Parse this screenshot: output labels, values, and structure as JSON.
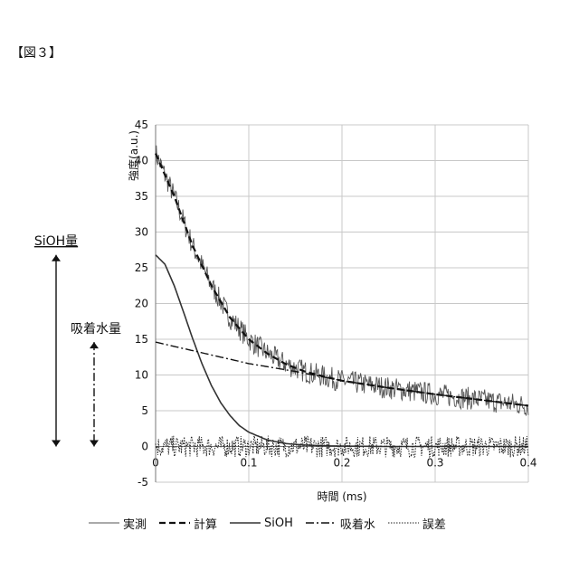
{
  "figure_label": "【図３】",
  "chart_data": {
    "type": "line",
    "title": "",
    "xlabel": "時間 (ms)",
    "ylabel": "強度(a.u.)",
    "xlim": [
      0,
      0.4
    ],
    "ylim": [
      -5,
      45
    ],
    "xticks": [
      "0",
      "0.1",
      "0.2",
      "0.3",
      "0.4"
    ],
    "yticks": [
      "-5",
      "0",
      "5",
      "10",
      "15",
      "20",
      "25",
      "30",
      "35",
      "40",
      "45"
    ],
    "grid": true,
    "legend_position": "bottom",
    "series": [
      {
        "name": "実測",
        "style": "solid-thin",
        "x": [
          0,
          0.02,
          0.04,
          0.06,
          0.08,
          0.1,
          0.12,
          0.14,
          0.16,
          0.18,
          0.2,
          0.25,
          0.3,
          0.35,
          0.4
        ],
        "y": [
          41,
          35,
          28,
          22.5,
          18,
          15,
          13,
          11.5,
          10.5,
          9.8,
          9.2,
          8.2,
          7.3,
          6.5,
          5.7
        ]
      },
      {
        "name": "計算",
        "style": "dashed",
        "x": [
          0,
          0.02,
          0.04,
          0.06,
          0.08,
          0.1,
          0.12,
          0.14,
          0.16,
          0.18,
          0.2,
          0.25,
          0.3,
          0.35,
          0.4
        ],
        "y": [
          41,
          35,
          28,
          22.5,
          18,
          15,
          13,
          11.5,
          10.5,
          9.8,
          9.2,
          8.2,
          7.3,
          6.5,
          5.7
        ]
      },
      {
        "name": "SiOH",
        "style": "solid",
        "x": [
          0,
          0.01,
          0.02,
          0.03,
          0.04,
          0.05,
          0.06,
          0.07,
          0.08,
          0.09,
          0.1,
          0.12,
          0.14,
          0.16,
          0.18,
          0.2,
          0.25,
          0.3,
          0.35,
          0.4
        ],
        "y": [
          26.8,
          25.5,
          22.5,
          18.8,
          15,
          11.5,
          8.5,
          6.1,
          4.3,
          2.9,
          2,
          0.9,
          0.4,
          0.2,
          0.1,
          0.05,
          0,
          0,
          0,
          0
        ]
      },
      {
        "name": "吸着水",
        "style": "dashdot",
        "x": [
          0,
          0.05,
          0.1,
          0.15,
          0.2,
          0.25,
          0.3,
          0.35,
          0.4
        ],
        "y": [
          14.6,
          13.1,
          11.6,
          10.5,
          9.2,
          8.2,
          7.3,
          6.5,
          5.7
        ]
      },
      {
        "name": "誤差",
        "style": "dotted",
        "x": [
          0,
          0.05,
          0.1,
          0.15,
          0.2,
          0.25,
          0.3,
          0.35,
          0.4
        ],
        "y": [
          0,
          0,
          0,
          0,
          0,
          0,
          0,
          0,
          0
        ]
      }
    ],
    "annotations": [
      {
        "text": "SiOH量",
        "from": 0,
        "to": 26.8
      },
      {
        "text": "吸着水量",
        "from": 0,
        "to": 14.6
      }
    ]
  }
}
